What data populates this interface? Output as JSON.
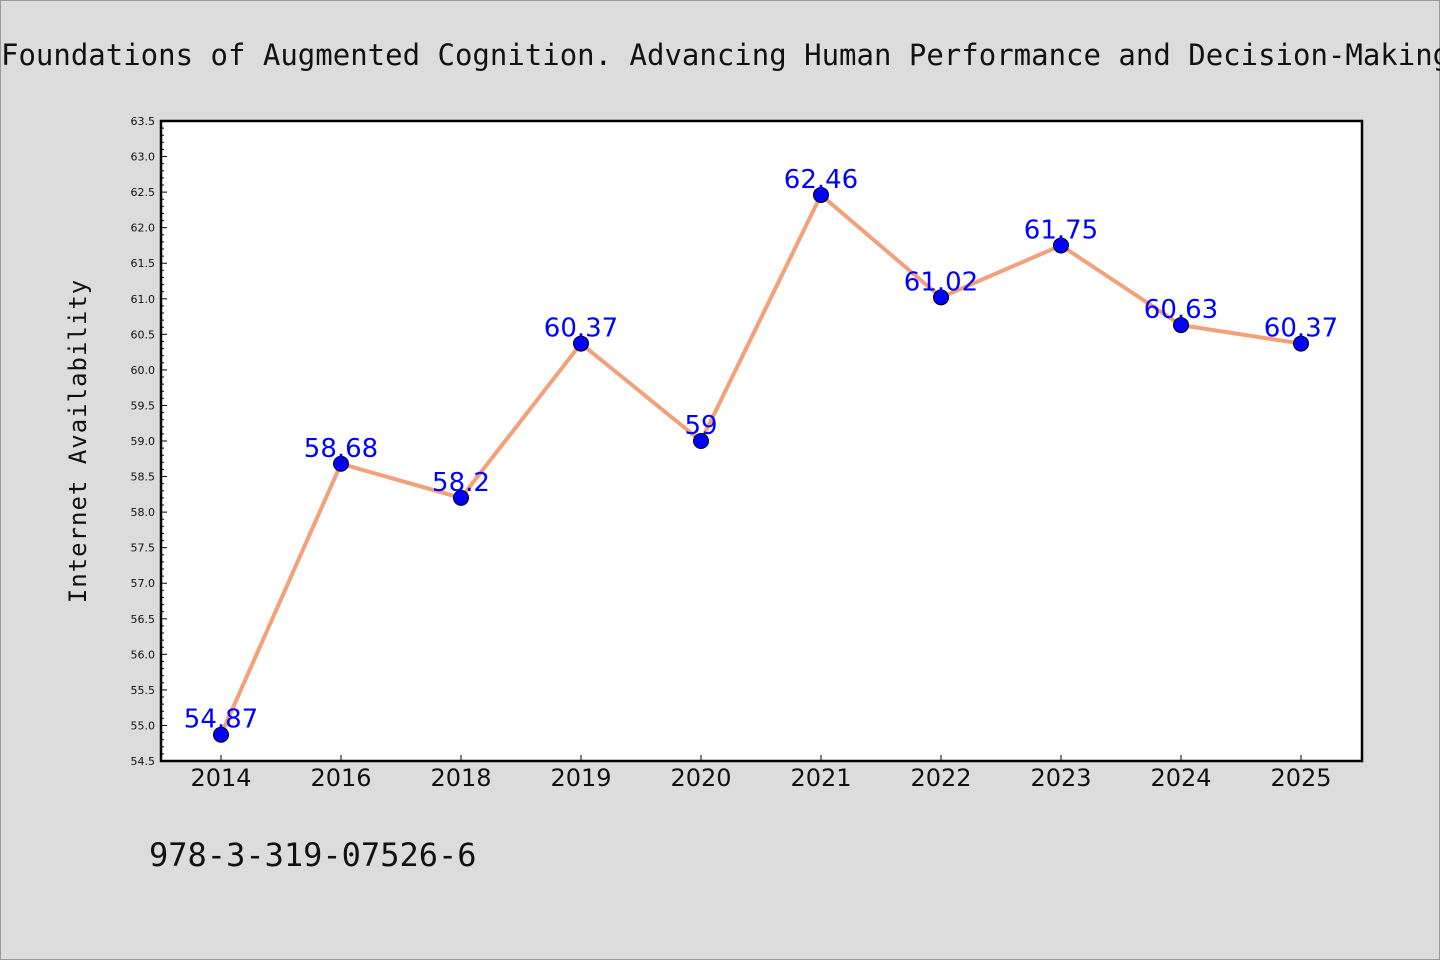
{
  "chart_data": {
    "type": "line",
    "title": "Foundations of Augmented Cognition. Advancing Human Performance and Decision-Making through Adaptive Systems",
    "xlabel": "",
    "ylabel": "Internet Availability",
    "categories": [
      "2014",
      "2016",
      "2018",
      "2019",
      "2020",
      "2021",
      "2022",
      "2023",
      "2024",
      "2025"
    ],
    "series": [
      {
        "values": [
          54.87,
          58.68,
          58.2,
          60.37,
          59,
          62.46,
          61.02,
          61.75,
          60.63,
          60.37
        ],
        "data_labels": [
          "54.87",
          "58.68",
          "58.2",
          "60.37",
          "59",
          "62.46",
          "61.02",
          "61.75",
          "60.63",
          "60.37"
        ]
      }
    ],
    "ylim": [
      54.5,
      63.5
    ],
    "yticks": [
      "54.5",
      "55.0",
      "55.5",
      "56.0",
      "56.5",
      "57.0",
      "57.5",
      "58.0",
      "58.5",
      "59.0",
      "59.5",
      "60.0",
      "60.5",
      "61.0",
      "61.5",
      "62.0",
      "62.5",
      "63.0",
      "63.5"
    ],
    "grid": false,
    "legend": "none",
    "colors": {
      "line": "#f4a07a",
      "marker": "#0000ff",
      "data_label": "#0000ff",
      "background": "#dcdcdc",
      "plot_area": "#ffffff"
    }
  },
  "footer_text": "978-3-319-07526-6"
}
